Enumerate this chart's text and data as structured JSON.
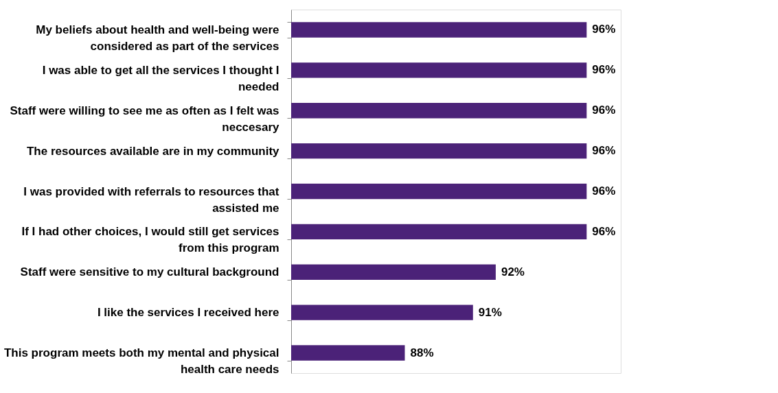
{
  "chart_data": {
    "type": "bar",
    "orientation": "horizontal",
    "categories": [
      "My beliefs about health and well-being were considered as part of the services",
      "I was able to get all the services I thought I needed",
      "Staff were willing to see me as often as I felt was neccesary",
      "The resources available are in my community",
      "I was provided with referrals to resources that assisted me",
      "If I had other choices, I would still get services from this program",
      "Staff were sensitive to my cultural background",
      "I like the services I received here",
      "This program meets both my mental and physical health care needs"
    ],
    "values": [
      96,
      96,
      96,
      96,
      96,
      96,
      92,
      91,
      88
    ],
    "value_labels": [
      "96%",
      "96%",
      "96%",
      "96%",
      "96%",
      "96%",
      "92%",
      "91%",
      "88%"
    ],
    "color": "#4b2278",
    "xlim": [
      83,
      97.5
    ],
    "grid": false
  }
}
